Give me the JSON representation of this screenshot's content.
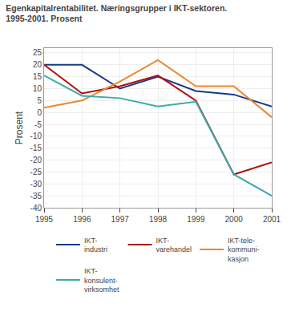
{
  "chart_data": {
    "type": "line",
    "title": "Egenkapitalrentabilitet. Næringsgrupper i IKT-sektoren.",
    "subtitle": "1995-2001. Prosent",
    "ylabel": "Prosent",
    "x": [
      1995,
      1996,
      1997,
      1998,
      1999,
      2000,
      2001
    ],
    "series": [
      {
        "name": "IKT-\nindustri",
        "color": "#1a3a8c",
        "values": [
          20,
          20,
          10,
          15,
          9,
          7.5,
          2.5
        ]
      },
      {
        "name": "IKT-\nvarehandel",
        "color": "#aa1111",
        "values": [
          20,
          8,
          11,
          15.5,
          5,
          -26,
          -21
        ]
      },
      {
        "name": "IKT-tele-\nkommuni-\nkasjon",
        "color": "#e8892a",
        "values": [
          2,
          5,
          13,
          22,
          11,
          11,
          -2
        ]
      },
      {
        "name": "IKT-\nkonsulent-\nvirksomhet",
        "color": "#3aabaa",
        "values": [
          15.5,
          7,
          6,
          2.5,
          4.5,
          -26,
          -35
        ]
      }
    ],
    "xlim": [
      1995,
      2001
    ],
    "xticks": [
      1995,
      1996,
      1997,
      1998,
      1999,
      2000,
      2001
    ],
    "ylim": [
      -40,
      27
    ],
    "yticks": [
      -40,
      -35,
      -30,
      -25,
      -20,
      -15,
      -10,
      -5,
      0,
      5,
      10,
      15,
      20,
      25
    ],
    "grid": true,
    "legend": "bottom"
  }
}
